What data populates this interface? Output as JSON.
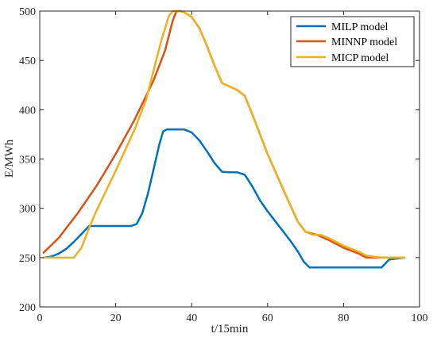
{
  "chart_data": {
    "type": "line",
    "title": "",
    "xlabel": "t/15min",
    "ylabel": "E/MWh",
    "xlim": [
      0,
      100
    ],
    "ylim": [
      200,
      500
    ],
    "xticks": [
      0,
      20,
      40,
      60,
      80,
      100
    ],
    "yticks": [
      200,
      250,
      300,
      350,
      400,
      450,
      500
    ],
    "grid": false,
    "legend_position": "top-right",
    "series": [
      {
        "name": "MILP model",
        "color": "#0072BD",
        "points": [
          [
            1,
            250
          ],
          [
            3,
            251
          ],
          [
            5,
            254
          ],
          [
            7,
            259
          ],
          [
            9,
            266
          ],
          [
            11,
            274
          ],
          [
            13,
            282
          ],
          [
            16,
            282
          ],
          [
            20,
            282
          ],
          [
            24,
            282
          ],
          [
            25.5,
            284
          ],
          [
            27,
            295
          ],
          [
            28.5,
            315
          ],
          [
            30,
            340
          ],
          [
            31.5,
            365
          ],
          [
            32.5,
            378
          ],
          [
            33.5,
            380
          ],
          [
            36,
            380
          ],
          [
            38,
            380
          ],
          [
            40,
            377
          ],
          [
            42,
            369
          ],
          [
            44,
            358
          ],
          [
            46,
            346
          ],
          [
            48,
            337
          ],
          [
            50,
            336.5
          ],
          [
            52,
            336.5
          ],
          [
            54,
            334
          ],
          [
            56,
            322
          ],
          [
            58,
            308
          ],
          [
            60,
            297
          ],
          [
            62,
            287
          ],
          [
            64,
            277
          ],
          [
            66,
            267
          ],
          [
            68,
            256
          ],
          [
            69.5,
            246
          ],
          [
            71,
            240
          ],
          [
            75,
            240
          ],
          [
            80,
            240
          ],
          [
            85,
            240
          ],
          [
            90,
            240
          ],
          [
            92,
            248
          ],
          [
            96,
            250
          ]
        ]
      },
      {
        "name": "MINNP model",
        "color": "#D95319",
        "points": [
          [
            1,
            255
          ],
          [
            5,
            270
          ],
          [
            10,
            295
          ],
          [
            15,
            323
          ],
          [
            20,
            355
          ],
          [
            25,
            390
          ],
          [
            30,
            430
          ],
          [
            32,
            450
          ],
          [
            33,
            460
          ],
          [
            34,
            475
          ],
          [
            35,
            490
          ],
          [
            36,
            500
          ],
          [
            37,
            500
          ],
          [
            38,
            499
          ],
          [
            40,
            494
          ],
          [
            42,
            483
          ],
          [
            44,
            465
          ],
          [
            46,
            445
          ],
          [
            48,
            427
          ],
          [
            52,
            420
          ],
          [
            54,
            414
          ],
          [
            56,
            395
          ],
          [
            60,
            355
          ],
          [
            64,
            320
          ],
          [
            68,
            286
          ],
          [
            70,
            276
          ],
          [
            73,
            273
          ],
          [
            76,
            268
          ],
          [
            80,
            260
          ],
          [
            84,
            254
          ],
          [
            86,
            250
          ],
          [
            90,
            250
          ],
          [
            96,
            250
          ]
        ]
      },
      {
        "name": "MICP model",
        "color": "#EDB120",
        "points": [
          [
            1,
            250
          ],
          [
            5,
            250
          ],
          [
            9,
            250
          ],
          [
            11,
            260
          ],
          [
            13,
            280
          ],
          [
            15,
            298
          ],
          [
            20,
            338
          ],
          [
            25,
            380
          ],
          [
            28,
            410
          ],
          [
            30,
            440
          ],
          [
            32,
            470
          ],
          [
            34,
            495
          ],
          [
            35,
            500
          ],
          [
            37,
            500
          ],
          [
            38,
            499
          ],
          [
            40,
            494
          ],
          [
            42,
            483
          ],
          [
            44,
            465
          ],
          [
            46,
            445
          ],
          [
            48,
            427
          ],
          [
            52,
            420
          ],
          [
            54,
            414
          ],
          [
            56,
            395
          ],
          [
            60,
            355
          ],
          [
            64,
            320
          ],
          [
            68,
            286
          ],
          [
            70,
            276
          ],
          [
            72,
            273
          ],
          [
            74,
            273
          ],
          [
            76,
            270
          ],
          [
            80,
            262
          ],
          [
            84,
            256
          ],
          [
            86,
            252
          ],
          [
            90,
            250
          ],
          [
            96,
            250
          ]
        ]
      }
    ]
  }
}
